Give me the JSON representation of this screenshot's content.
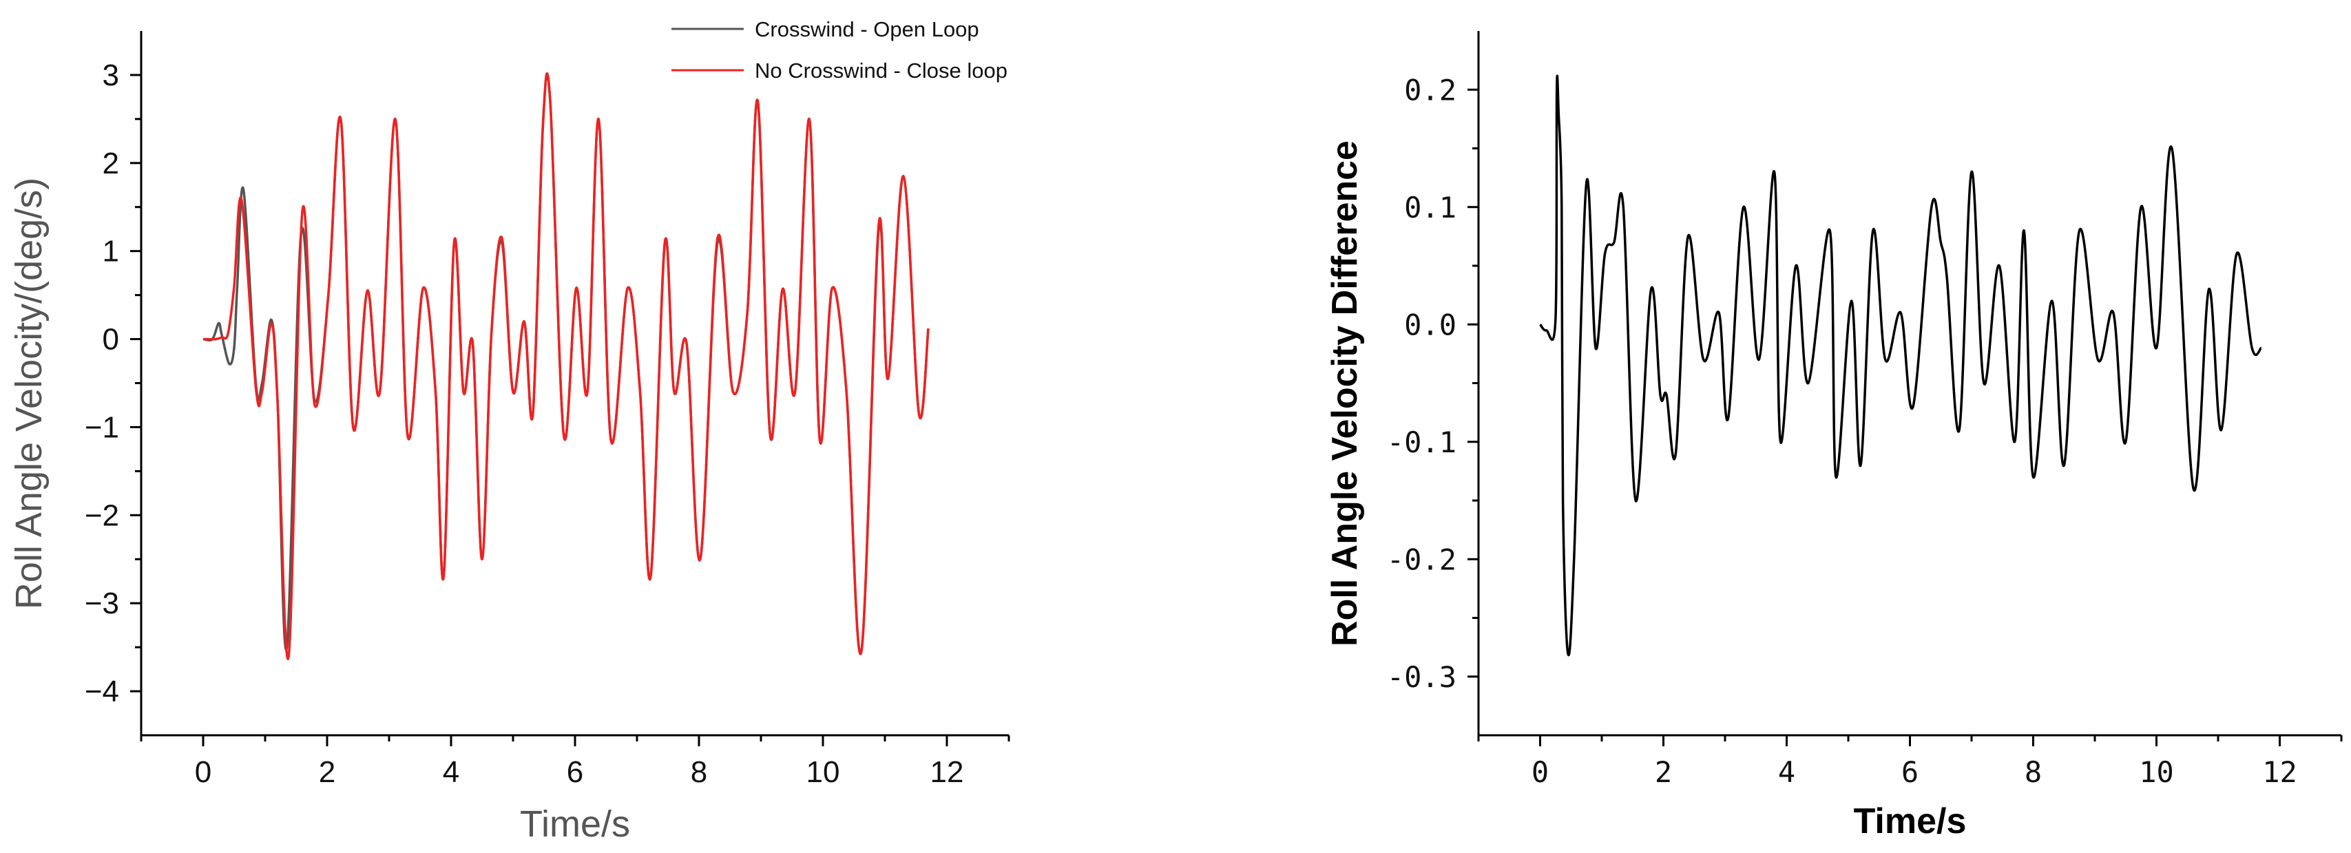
{
  "chart_data": [
    {
      "type": "line",
      "title": "",
      "xlabel": "Time/s",
      "ylabel": "Roll Angle Velocity/(deg/s)",
      "xlim": [
        -1,
        13
      ],
      "ylim": [
        -4.5,
        3.5
      ],
      "xticks": [
        0,
        2,
        4,
        6,
        8,
        10,
        12
      ],
      "yticks": [
        -4,
        -3,
        -2,
        -1,
        0,
        1,
        2,
        3
      ],
      "grid": false,
      "legend_position": "top-right",
      "series": [
        {
          "name": "Crosswind - Open Loop",
          "color": "#555555",
          "x": [
            0,
            0.15,
            0.25,
            0.3,
            0.42,
            0.5,
            0.55,
            0.65,
            0.85,
            0.95,
            1.1,
            1.2,
            1.35,
            1.58,
            1.8,
            2.02,
            2.22,
            2.42,
            2.65,
            2.85,
            3.1,
            3.3,
            3.55,
            3.75,
            3.88,
            4.05,
            4.2,
            4.35,
            4.5,
            4.65,
            4.82,
            5.0,
            5.18,
            5.32,
            5.48,
            5.6,
            5.82,
            6.02,
            6.2,
            6.38,
            6.58,
            6.85,
            7.05,
            7.22,
            7.45,
            7.6,
            7.8,
            8.02,
            8.3,
            8.55,
            8.78,
            8.95,
            9.15,
            9.35,
            9.55,
            9.78,
            9.95,
            10.15,
            10.38,
            10.62,
            10.9,
            11.05,
            11.3,
            11.55,
            11.7
          ],
          "y": [
            0,
            0,
            0.18,
            0.05,
            -0.28,
            -0.1,
            0.6,
            1.7,
            -0.5,
            -0.5,
            0.22,
            -0.7,
            -3.5,
            1.2,
            -0.7,
            0.5,
            2.5,
            -1.0,
            0.55,
            -0.6,
            2.5,
            -1.1,
            0.58,
            -0.6,
            -2.7,
            1.1,
            -0.6,
            -0.05,
            -2.5,
            0.05,
            1.1,
            -0.6,
            0.2,
            -0.85,
            2.4,
            2.7,
            -1.1,
            0.58,
            -0.6,
            2.5,
            -1.15,
            0.58,
            -0.6,
            -2.7,
            1.1,
            -0.6,
            -0.05,
            -2.5,
            1.1,
            -0.6,
            0.3,
            2.7,
            -1.1,
            0.57,
            -0.6,
            2.5,
            -1.15,
            0.58,
            -0.6,
            -3.55,
            1.25,
            -0.45,
            1.85,
            -0.85,
            0.12
          ]
        },
        {
          "name": "No Crosswind - Close loop",
          "color": "#ee2222",
          "x": [
            0,
            0.2,
            0.3,
            0.4,
            0.5,
            0.62,
            0.85,
            0.95,
            1.1,
            1.2,
            1.38,
            1.6,
            1.8,
            2.02,
            2.22,
            2.42,
            2.65,
            2.85,
            3.1,
            3.3,
            3.55,
            3.75,
            3.88,
            4.05,
            4.2,
            4.35,
            4.5,
            4.65,
            4.82,
            5.0,
            5.18,
            5.32,
            5.48,
            5.6,
            5.82,
            6.02,
            6.2,
            6.38,
            6.58,
            6.85,
            7.05,
            7.22,
            7.45,
            7.6,
            7.8,
            8.02,
            8.3,
            8.55,
            8.78,
            8.95,
            9.15,
            9.35,
            9.55,
            9.78,
            9.95,
            10.15,
            10.38,
            10.62,
            10.9,
            11.05,
            11.3,
            11.55,
            11.7
          ],
          "y": [
            0,
            0,
            0.02,
            0.06,
            0.6,
            1.58,
            -0.55,
            -0.6,
            0.18,
            -0.7,
            -3.6,
            1.45,
            -0.75,
            0.5,
            2.5,
            -1.0,
            0.55,
            -0.6,
            2.5,
            -1.1,
            0.58,
            -0.6,
            -2.7,
            1.1,
            -0.6,
            -0.05,
            -2.5,
            0.05,
            1.15,
            -0.6,
            0.2,
            -0.85,
            2.4,
            2.7,
            -1.1,
            0.58,
            -0.6,
            2.5,
            -1.15,
            0.58,
            -0.6,
            -2.7,
            1.1,
            -0.6,
            -0.05,
            -2.5,
            1.15,
            -0.6,
            0.3,
            2.7,
            -1.1,
            0.57,
            -0.6,
            2.5,
            -1.15,
            0.58,
            -0.6,
            -3.55,
            1.3,
            -0.45,
            1.85,
            -0.85,
            0.12
          ]
        }
      ]
    },
    {
      "type": "line",
      "title": "",
      "xlabel": "Time/s",
      "ylabel": "Roll Angle Velocity Difference",
      "xlim": [
        -1,
        13
      ],
      "ylim": [
        -0.35,
        0.25
      ],
      "xticks": [
        0,
        2,
        4,
        6,
        8,
        10,
        12
      ],
      "yticks": [
        -0.3,
        -0.2,
        -0.1,
        0.0,
        0.1,
        0.2
      ],
      "ytick_labels": [
        "-0.3",
        "-0.2",
        "-0.1",
        "0.0",
        "0.1",
        "0.2"
      ],
      "grid": false,
      "series": [
        {
          "color": "#000000",
          "x": [
            0,
            0.1,
            0.25,
            0.27,
            0.3,
            0.35,
            0.37,
            0.45,
            0.55,
            0.75,
            0.9,
            1.05,
            1.2,
            1.35,
            1.55,
            1.8,
            1.95,
            2.05,
            2.2,
            2.4,
            2.65,
            2.9,
            3.05,
            3.3,
            3.55,
            3.8,
            3.9,
            4.15,
            4.35,
            4.7,
            4.8,
            5.05,
            5.2,
            5.4,
            5.6,
            5.85,
            6.05,
            6.35,
            6.5,
            6.6,
            6.8,
            7.0,
            7.2,
            7.45,
            7.7,
            7.85,
            8.0,
            8.3,
            8.5,
            8.75,
            9.05,
            9.3,
            9.5,
            9.75,
            10.0,
            10.25,
            10.6,
            10.85,
            11.05,
            11.3,
            11.55,
            11.7
          ],
          "y": [
            0,
            -0.005,
            0.005,
            0.2,
            0.18,
            0.1,
            -0.15,
            -0.28,
            -0.2,
            0.12,
            -0.02,
            0.06,
            0.07,
            0.1,
            -0.15,
            0.03,
            -0.06,
            -0.06,
            -0.11,
            0.075,
            -0.03,
            0.01,
            -0.08,
            0.1,
            -0.03,
            0.13,
            -0.1,
            0.05,
            -0.05,
            0.08,
            -0.13,
            0.02,
            -0.12,
            0.08,
            -0.03,
            0.01,
            -0.07,
            0.1,
            0.07,
            0.04,
            -0.09,
            0.13,
            -0.05,
            0.05,
            -0.1,
            0.08,
            -0.13,
            0.02,
            -0.12,
            0.08,
            -0.03,
            0.01,
            -0.1,
            0.1,
            -0.02,
            0.15,
            -0.14,
            0.03,
            -0.09,
            0.06,
            -0.02,
            -0.02
          ]
        }
      ]
    }
  ]
}
